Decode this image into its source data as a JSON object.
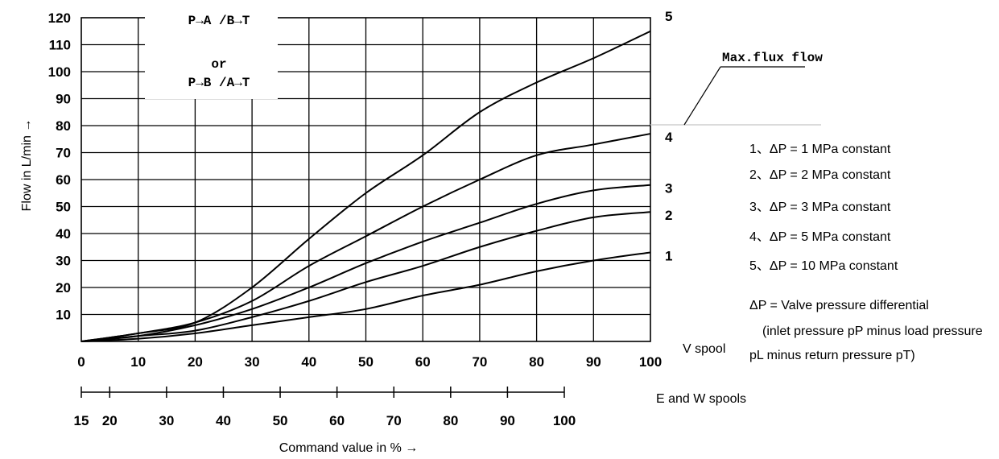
{
  "chart_data": {
    "type": "line",
    "title": "",
    "ylabel": "Flow in L/min →",
    "xlabel": "Command value in % →",
    "ylim": [
      0,
      120
    ],
    "xlim": [
      0,
      100
    ],
    "y_ticks": [
      "10",
      "20",
      "30",
      "40",
      "50",
      "60",
      "70",
      "80",
      "90",
      "100",
      "110",
      "120"
    ],
    "x_ticks": [
      "0",
      "10",
      "20",
      "30",
      "40",
      "50",
      "60",
      "70",
      "80",
      "90",
      "100"
    ],
    "secondary_x_ticks": [
      "15",
      "20",
      "30",
      "40",
      "50",
      "60",
      "70",
      "80",
      "90",
      "100"
    ],
    "v_spool_label": "V spool",
    "ew_spool_label": "E and W spools",
    "flow_box": {
      "line1": "P→A /B→T",
      "line2": "or",
      "line3": "P→B /A→T"
    },
    "max_flux_label": "Max.flux flow",
    "max_flux_value": 80,
    "series": [
      {
        "name": "1",
        "x": [
          0,
          10,
          20,
          30,
          40,
          50,
          60,
          70,
          80,
          90,
          100
        ],
        "y": [
          0,
          1,
          3,
          6,
          9,
          12,
          17,
          21,
          26,
          30,
          33
        ]
      },
      {
        "name": "2",
        "x": [
          0,
          10,
          20,
          30,
          40,
          50,
          60,
          70,
          80,
          90,
          100
        ],
        "y": [
          0,
          2,
          4,
          9,
          15,
          22,
          28,
          35,
          41,
          46,
          48
        ]
      },
      {
        "name": "3",
        "x": [
          0,
          10,
          20,
          30,
          40,
          50,
          60,
          70,
          80,
          90,
          100
        ],
        "y": [
          0,
          2,
          6,
          12,
          20,
          29,
          37,
          44,
          51,
          56,
          58
        ]
      },
      {
        "name": "4",
        "x": [
          0,
          10,
          20,
          30,
          40,
          50,
          60,
          70,
          80,
          90,
          100
        ],
        "y": [
          0,
          3,
          7,
          15,
          28,
          39,
          50,
          60,
          69,
          73,
          77
        ]
      },
      {
        "name": "5",
        "x": [
          0,
          10,
          20,
          30,
          40,
          50,
          60,
          70,
          80,
          90,
          100
        ],
        "y": [
          0,
          3,
          7,
          20,
          38,
          55,
          69,
          85,
          96,
          105,
          115
        ]
      }
    ],
    "legend": [
      "1、ΔP = 1 MPa constant",
      "2、ΔP = 2 MPa constant",
      "3、ΔP = 3 MPa constant",
      "4、ΔP = 5 MPa constant",
      "5、ΔP = 10 MPa constant"
    ],
    "notes": [
      "ΔP = Valve pressure differential",
      "(inlet pressure pP minus load pressure",
      "pL minus return pressure pT)"
    ]
  }
}
